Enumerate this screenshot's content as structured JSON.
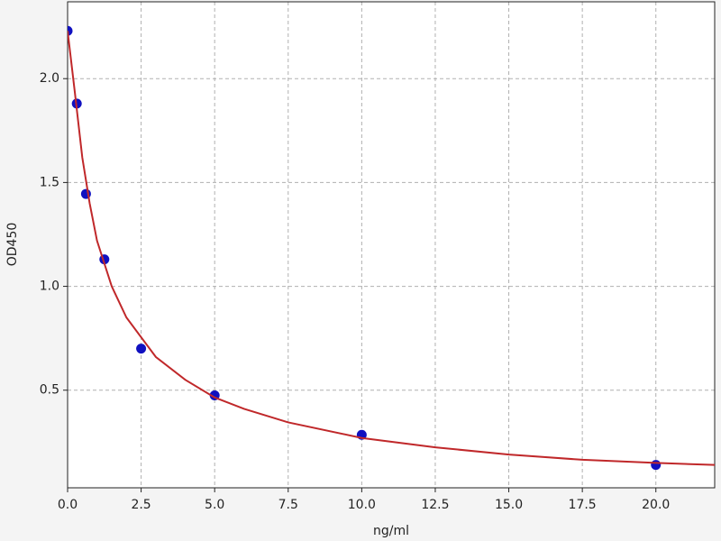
{
  "chart_data": {
    "type": "scatter",
    "x_label": "ng/ml",
    "y_label": "OD450",
    "x": [
      0,
      0.3125,
      0.625,
      1.25,
      2.5,
      5,
      10,
      20
    ],
    "values": [
      2.23,
      1.88,
      1.445,
      1.13,
      0.7,
      0.475,
      0.285,
      0.14
    ],
    "color": "#1010c0",
    "curve": {
      "x": [
        0,
        0.25,
        0.5,
        0.75,
        1,
        1.5,
        2,
        3,
        4,
        5,
        6,
        7.5,
        10,
        12.5,
        15,
        17.5,
        20,
        22
      ],
      "values": [
        2.23,
        1.93,
        1.62,
        1.4,
        1.22,
        1.0,
        0.85,
        0.66,
        0.55,
        0.465,
        0.41,
        0.345,
        0.27,
        0.225,
        0.19,
        0.165,
        0.15,
        0.14
      ],
      "color": "#c0282a"
    },
    "xlim": [
      0,
      22
    ],
    "ylim": [
      0.03,
      2.37
    ],
    "xticks": [
      {
        "value": 0,
        "label": "0.0"
      },
      2.5,
      {
        "value": 5,
        "label": "5.0"
      },
      7.5,
      {
        "value": 10,
        "label": "10.0"
      },
      12.5,
      {
        "value": 15,
        "label": "15.0"
      },
      17.5,
      {
        "value": 20,
        "label": "20.0"
      }
    ],
    "yticks": [
      0.5,
      {
        "value": 1,
        "label": "1.0"
      },
      1.5,
      {
        "value": 2,
        "label": "2.0"
      }
    ],
    "grid": true
  }
}
